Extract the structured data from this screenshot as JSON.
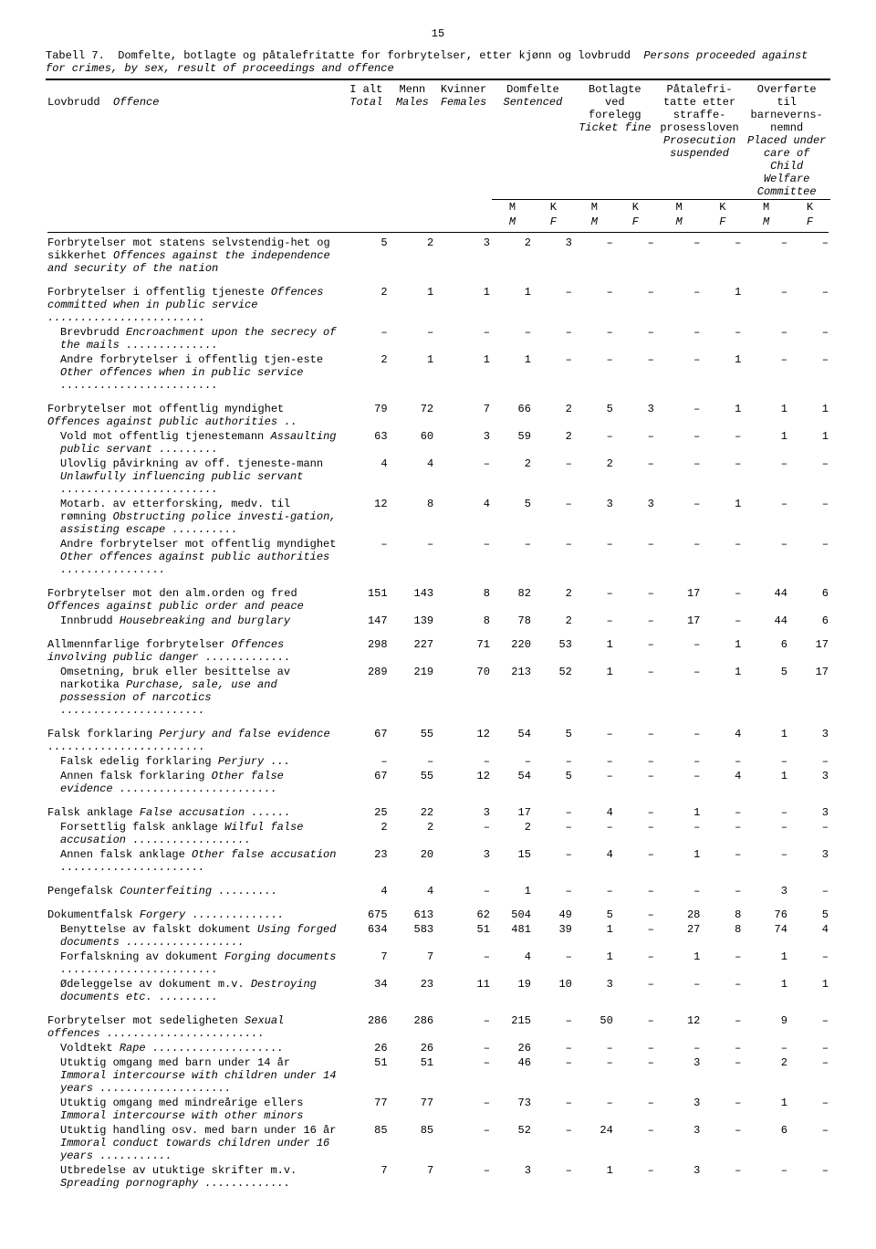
{
  "page_number": "15",
  "table_number": "Tabell 7.",
  "title_no": "Domfelte, botlagte og påtalefritatte for forbrytelser, etter kjønn og lovbrudd",
  "title_en": "Persons proceeded against for crimes, by sex, result of proceedings and offence",
  "columns": {
    "offence": {
      "no": "Lovbrudd",
      "en": "Offence"
    },
    "total": {
      "no": "I alt",
      "en": "Total"
    },
    "males": {
      "no": "Menn",
      "en": "Males"
    },
    "females": {
      "no": "Kvinner",
      "en": "Females"
    },
    "sentenced": {
      "no": "Domfelte",
      "en": "Sentenced"
    },
    "ticket": {
      "no": "Botlagte ved forelegg",
      "en": "Ticket fine"
    },
    "suspended": {
      "no": "Påtalefri-tatte etter straffe-prosessloven",
      "en": "Prosecution suspended"
    },
    "welfare": {
      "no": "Overførte til barneverns-nemnd",
      "en": "Placed under care of Child Welfare Committee"
    },
    "m": "M",
    "k": "K",
    "m_en": "M",
    "f_en": "F"
  },
  "rows": [
    {
      "label_no": "Forbrytelser mot statens selvstendig-het og sikkerhet",
      "label_en": "Offences against the independence and security of the nation",
      "t": "5",
      "m": "2",
      "f": "3",
      "sm": "2",
      "sk": "3",
      "bm": "–",
      "bk": "–",
      "pm": "–",
      "pk": "–",
      "wm": "–",
      "wk": "–"
    },
    {
      "label_no": "Forbrytelser i offentlig tjeneste",
      "label_en": "Offences committed when in public service ........................",
      "t": "2",
      "m": "1",
      "f": "1",
      "sm": "1",
      "sk": "–",
      "bm": "–",
      "bk": "–",
      "pm": "–",
      "pk": "1",
      "wm": "–",
      "wk": "–"
    },
    {
      "sub": true,
      "label_no": "Brevbrudd",
      "label_en": "Encroachment upon the secrecy of the mails ..............",
      "t": "–",
      "m": "–",
      "f": "–",
      "sm": "–",
      "sk": "–",
      "bm": "–",
      "bk": "–",
      "pm": "–",
      "pk": "–",
      "wm": "–",
      "wk": "–"
    },
    {
      "sub": true,
      "label_no": "Andre forbrytelser i offentlig tjen-este",
      "label_en": "Other offences when in public service ........................",
      "t": "2",
      "m": "1",
      "f": "1",
      "sm": "1",
      "sk": "–",
      "bm": "–",
      "bk": "–",
      "pm": "–",
      "pk": "1",
      "wm": "–",
      "wk": "–"
    },
    {
      "label_no": "Forbrytelser mot offentlig myndighet",
      "label_en": "Offences against public authorities ..",
      "t": "79",
      "m": "72",
      "f": "7",
      "sm": "66",
      "sk": "2",
      "bm": "5",
      "bk": "3",
      "pm": "–",
      "pk": "1",
      "wm": "1",
      "wk": "1"
    },
    {
      "sub": true,
      "label_no": "Vold mot offentlig tjenestemann",
      "label_en": "Assaulting public servant .........",
      "t": "63",
      "m": "60",
      "f": "3",
      "sm": "59",
      "sk": "2",
      "bm": "–",
      "bk": "–",
      "pm": "–",
      "pk": "–",
      "wm": "1",
      "wk": "1"
    },
    {
      "sub": true,
      "label_no": "Ulovlig påvirkning av off. tjeneste-mann",
      "label_en": "Unlawfully influencing public servant ........................",
      "t": "4",
      "m": "4",
      "f": "–",
      "sm": "2",
      "sk": "–",
      "bm": "2",
      "bk": "–",
      "pm": "–",
      "pk": "–",
      "wm": "–",
      "wk": "–"
    },
    {
      "sub": true,
      "label_no": "Motarb. av etterforsking, medv. til rømning",
      "label_en": "Obstructing police investi-gation, assisting escape ..........",
      "t": "12",
      "m": "8",
      "f": "4",
      "sm": "5",
      "sk": "–",
      "bm": "3",
      "bk": "3",
      "pm": "–",
      "pk": "1",
      "wm": "–",
      "wk": "–"
    },
    {
      "sub": true,
      "label_no": "Andre forbrytelser mot offentlig myndighet",
      "label_en": "Other offences against public authorities ................",
      "t": "–",
      "m": "–",
      "f": "–",
      "sm": "–",
      "sk": "–",
      "bm": "–",
      "bk": "–",
      "pm": "–",
      "pk": "–",
      "wm": "–",
      "wk": "–"
    },
    {
      "label_no": "Forbrytelser mot den alm.orden og fred",
      "label_en": "Offences against public order and peace",
      "t": "151",
      "m": "143",
      "f": "8",
      "sm": "82",
      "sk": "2",
      "bm": "–",
      "bk": "–",
      "pm": "17",
      "pk": "–",
      "wm": "44",
      "wk": "6"
    },
    {
      "sub": true,
      "label_no": "Innbrudd",
      "label_en": "Housebreaking and burglary",
      "t": "147",
      "m": "139",
      "f": "8",
      "sm": "78",
      "sk": "2",
      "bm": "–",
      "bk": "–",
      "pm": "17",
      "pk": "–",
      "wm": "44",
      "wk": "6"
    },
    {
      "label_no": "Allmennfarlige forbrytelser",
      "label_en": "Offences involving public danger .............",
      "t": "298",
      "m": "227",
      "f": "71",
      "sm": "220",
      "sk": "53",
      "bm": "1",
      "bk": "–",
      "pm": "–",
      "pk": "1",
      "wm": "6",
      "wk": "17"
    },
    {
      "sub": true,
      "label_no": "Omsetning, bruk eller besittelse av narkotika",
      "label_en": "Purchase, sale, use and possession of narcotics ......................",
      "t": "289",
      "m": "219",
      "f": "70",
      "sm": "213",
      "sk": "52",
      "bm": "1",
      "bk": "–",
      "pm": "–",
      "pk": "1",
      "wm": "5",
      "wk": "17"
    },
    {
      "label_no": "Falsk forklaring",
      "label_en": "Perjury and false evidence ........................",
      "t": "67",
      "m": "55",
      "f": "12",
      "sm": "54",
      "sk": "5",
      "bm": "–",
      "bk": "–",
      "pm": "–",
      "pk": "4",
      "wm": "1",
      "wk": "3"
    },
    {
      "sub": true,
      "label_no": "Falsk edelig forklaring",
      "label_en": "Perjury ...",
      "t": "–",
      "m": "–",
      "f": "–",
      "sm": "–",
      "sk": "–",
      "bm": "–",
      "bk": "–",
      "pm": "–",
      "pk": "–",
      "wm": "–",
      "wk": "–"
    },
    {
      "sub": true,
      "label_no": "Annen falsk forklaring",
      "label_en": "Other false evidence ........................",
      "t": "67",
      "m": "55",
      "f": "12",
      "sm": "54",
      "sk": "5",
      "bm": "–",
      "bk": "–",
      "pm": "–",
      "pk": "4",
      "wm": "1",
      "wk": "3"
    },
    {
      "label_no": "Falsk anklage",
      "label_en": "False accusation ......",
      "t": "25",
      "m": "22",
      "f": "3",
      "sm": "17",
      "sk": "–",
      "bm": "4",
      "bk": "–",
      "pm": "1",
      "pk": "–",
      "wm": "–",
      "wk": "3"
    },
    {
      "sub": true,
      "label_no": "Forsettlig falsk anklage",
      "label_en": "Wilful false accusation ..................",
      "t": "2",
      "m": "2",
      "f": "–",
      "sm": "2",
      "sk": "–",
      "bm": "–",
      "bk": "–",
      "pm": "–",
      "pk": "–",
      "wm": "–",
      "wk": "–"
    },
    {
      "sub": true,
      "label_no": "Annen falsk anklage",
      "label_en": "Other false accusation ......................",
      "t": "23",
      "m": "20",
      "f": "3",
      "sm": "15",
      "sk": "–",
      "bm": "4",
      "bk": "–",
      "pm": "1",
      "pk": "–",
      "wm": "–",
      "wk": "3"
    },
    {
      "label_no": "Pengefalsk",
      "label_en": "Counterfeiting  .........",
      "t": "4",
      "m": "4",
      "f": "–",
      "sm": "1",
      "sk": "–",
      "bm": "–",
      "bk": "–",
      "pm": "–",
      "pk": "–",
      "wm": "3",
      "wk": "–"
    },
    {
      "label_no": "Dokumentfalsk",
      "label_en": "Forgery ..............",
      "t": "675",
      "m": "613",
      "f": "62",
      "sm": "504",
      "sk": "49",
      "bm": "5",
      "bk": "–",
      "pm": "28",
      "pk": "8",
      "wm": "76",
      "wk": "5"
    },
    {
      "sub": true,
      "label_no": "Benyttelse av falskt dokument",
      "label_en": "Using forged documents ..................",
      "t": "634",
      "m": "583",
      "f": "51",
      "sm": "481",
      "sk": "39",
      "bm": "1",
      "bk": "–",
      "pm": "27",
      "pk": "8",
      "wm": "74",
      "wk": "4"
    },
    {
      "sub": true,
      "label_no": "Forfalskning av dokument",
      "label_en": "Forging documents ........................",
      "t": "7",
      "m": "7",
      "f": "–",
      "sm": "4",
      "sk": "–",
      "bm": "1",
      "bk": "–",
      "pm": "1",
      "pk": "–",
      "wm": "1",
      "wk": "–"
    },
    {
      "sub": true,
      "label_no": "Ødeleggelse av dokument m.v.",
      "label_en": "Destroying documents etc. .........",
      "t": "34",
      "m": "23",
      "f": "11",
      "sm": "19",
      "sk": "10",
      "bm": "3",
      "bk": "–",
      "pm": "–",
      "pk": "–",
      "wm": "1",
      "wk": "1"
    },
    {
      "label_no": "Forbrytelser mot sedeligheten",
      "label_en": "Sexual offences ........................",
      "t": "286",
      "m": "286",
      "f": "–",
      "sm": "215",
      "sk": "–",
      "bm": "50",
      "bk": "–",
      "pm": "12",
      "pk": "–",
      "wm": "9",
      "wk": "–"
    },
    {
      "sub": true,
      "label_no": "Voldtekt",
      "label_en": "Rape ....................",
      "t": "26",
      "m": "26",
      "f": "–",
      "sm": "26",
      "sk": "–",
      "bm": "–",
      "bk": "–",
      "pm": "–",
      "pk": "–",
      "wm": "–",
      "wk": "–"
    },
    {
      "sub": true,
      "label_no": "Utuktig omgang med barn under 14 år",
      "label_en": "Immoral intercourse with children under 14 years ....................",
      "t": "51",
      "m": "51",
      "f": "–",
      "sm": "46",
      "sk": "–",
      "bm": "–",
      "bk": "–",
      "pm": "3",
      "pk": "–",
      "wm": "2",
      "wk": "–"
    },
    {
      "sub": true,
      "label_no": "Utuktig omgang med mindreårige ellers",
      "label_en": "Immoral intercourse with other minors",
      "t": "77",
      "m": "77",
      "f": "–",
      "sm": "73",
      "sk": "–",
      "bm": "–",
      "bk": "–",
      "pm": "3",
      "pk": "–",
      "wm": "1",
      "wk": "–"
    },
    {
      "sub": true,
      "label_no": "Utuktig handling osv. med barn under 16 år",
      "label_en": "Immoral conduct towards children under 16 years ...........",
      "t": "85",
      "m": "85",
      "f": "–",
      "sm": "52",
      "sk": "–",
      "bm": "24",
      "bk": "–",
      "pm": "3",
      "pk": "–",
      "wm": "6",
      "wk": "–"
    },
    {
      "sub": true,
      "label_no": "Utbredelse av utuktige skrifter m.v.",
      "label_en": "Spreading pornography .............",
      "t": "7",
      "m": "7",
      "f": "–",
      "sm": "3",
      "sk": "–",
      "bm": "1",
      "bk": "–",
      "pm": "3",
      "pk": "–",
      "wm": "–",
      "wk": "–"
    }
  ],
  "colwidths": {
    "offence": 290,
    "num": 45
  },
  "style": {
    "font_family": "Courier New",
    "font_size_pt": 12,
    "background": "#ffffff",
    "text_color": "#000000"
  }
}
